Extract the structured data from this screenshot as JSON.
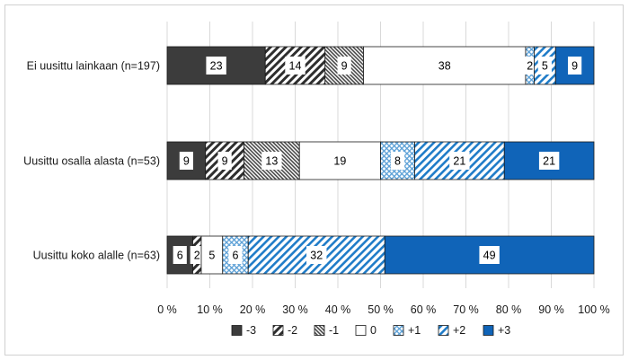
{
  "chart_data": {
    "type": "bar",
    "orientation": "horizontal",
    "stacked": true,
    "percent": true,
    "categories": [
      "Ei uusittu lainkaan (n=197)",
      "Uusittu osalla alasta (n=53)",
      "Uusittu koko alalle (n=63)"
    ],
    "series": [
      {
        "name": "-3",
        "values": [
          23,
          9,
          6
        ],
        "labels": [
          "23",
          "9",
          "6"
        ],
        "color": "#3c3c3c",
        "pattern": "solid-dark"
      },
      {
        "name": "-2",
        "values": [
          14,
          9,
          2
        ],
        "labels": [
          "14",
          "9",
          "2"
        ],
        "color": "#3c3c3c",
        "pattern": "wide-diagonal-dark"
      },
      {
        "name": "-1",
        "values": [
          9,
          13,
          0
        ],
        "labels": [
          "9",
          "13",
          ""
        ],
        "color": "#3c3c3c",
        "pattern": "narrow-diagonal-dark"
      },
      {
        "name": "0",
        "values": [
          38,
          19,
          5
        ],
        "labels": [
          "38",
          "19",
          "5"
        ],
        "color": "#ffffff",
        "pattern": "blank"
      },
      {
        "name": "+1",
        "values": [
          2,
          8,
          6
        ],
        "labels": [
          "2",
          "8",
          "6"
        ],
        "color": "#1f7cc8",
        "pattern": "light-dots-blue"
      },
      {
        "name": "+2",
        "values": [
          5,
          21,
          32
        ],
        "labels": [
          "5",
          "21",
          "32"
        ],
        "color": "#1f7cc8",
        "pattern": "wide-diagonal-blue"
      },
      {
        "name": "+3",
        "values": [
          9,
          21,
          49
        ],
        "labels": [
          "9",
          "21",
          "49"
        ],
        "color": "#1064b8",
        "pattern": "solid-blue"
      }
    ],
    "xlim": [
      0,
      100
    ],
    "x_ticks": [
      "0 %",
      "10 %",
      "20 %",
      "30 %",
      "40 %",
      "50 %",
      "60 %",
      "70 %",
      "80 %",
      "90 %",
      "100 %"
    ],
    "grid": "vertical",
    "legend_position": "bottom"
  }
}
